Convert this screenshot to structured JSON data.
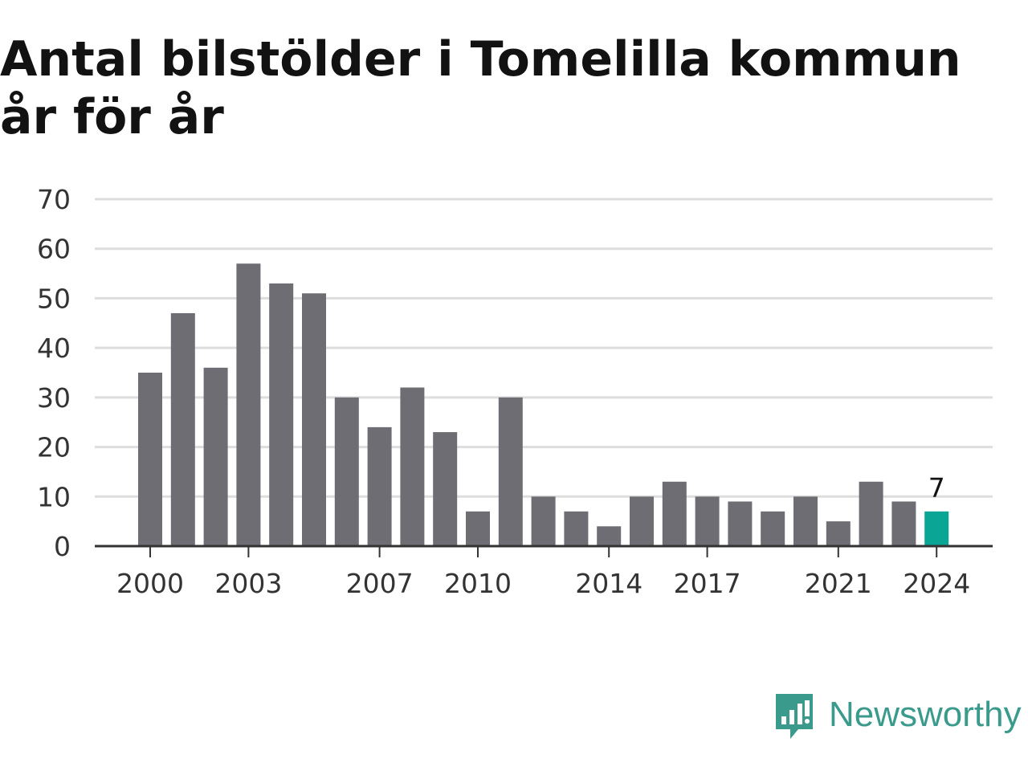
{
  "title": "Antal bilstölder i Tomelilla kommun år för år",
  "logo": {
    "text": "Newsworthy",
    "icon": "newsworthy-bar-chart-bubble-icon",
    "color": "#3a9a8c"
  },
  "colors": {
    "bar": "#6e6d73",
    "highlight": "#0aa595",
    "grid": "#dddddd",
    "axis": "#333333"
  },
  "chart_data": {
    "type": "bar",
    "title": "Antal bilstölder i Tomelilla kommun år för år",
    "xlabel": "",
    "ylabel": "",
    "ylim": [
      0,
      70
    ],
    "yticks": [
      0,
      10,
      20,
      30,
      40,
      50,
      60,
      70
    ],
    "xtick_labels": [
      "2000",
      "2003",
      "2007",
      "2010",
      "2014",
      "2017",
      "2021",
      "2024"
    ],
    "grid": true,
    "legend": "none",
    "categories": [
      "2000",
      "2001",
      "2002",
      "2003",
      "2004",
      "2005",
      "2006",
      "2007",
      "2008",
      "2009",
      "2010",
      "2011",
      "2012",
      "2013",
      "2014",
      "2015",
      "2016",
      "2017",
      "2018",
      "2019",
      "2020",
      "2021",
      "2022",
      "2023",
      "2024"
    ],
    "values": [
      35,
      47,
      36,
      57,
      53,
      51,
      30,
      24,
      32,
      23,
      7,
      30,
      10,
      7,
      4,
      10,
      13,
      10,
      9,
      7,
      10,
      5,
      13,
      9,
      7
    ],
    "highlight": {
      "category": "2024",
      "value_label": "7"
    }
  }
}
